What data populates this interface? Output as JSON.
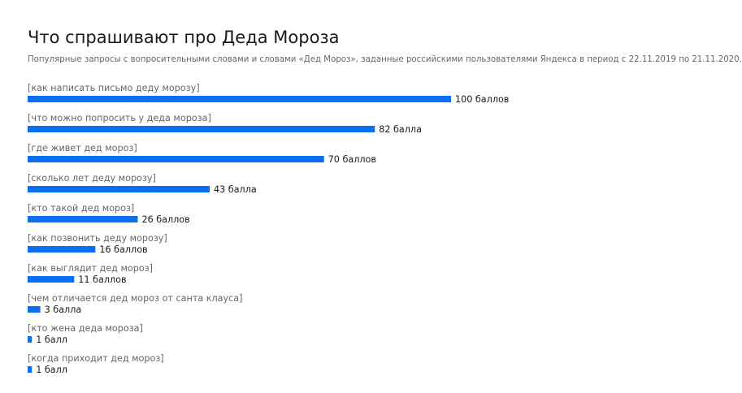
{
  "chart_data": {
    "type": "bar",
    "orientation": "horizontal",
    "title": "Что спрашивают про Деда Мороза",
    "subtitle": "Популярные запросы с вопросительными словами и словами «Дед Мороз», заданные российскими пользователями Яндекса в период с 22.11.2019 по 21.11.2020.",
    "categories": [
      "[как написать письмо деду морозу]",
      "[что можно попросить у деда мороза]",
      "[где живет дед мороз]",
      "[сколько лет деду морозу]",
      "[кто такой дед мороз]",
      "[как позвонить деду морозу]",
      "[как выглядит дед мороз]",
      "[чем отличается дед мороз от санта клауса]",
      "[кто жена деда мороза]",
      "[когда приходит дед мороз]"
    ],
    "values": [
      100,
      82,
      70,
      43,
      26,
      16,
      11,
      3,
      1,
      1
    ],
    "value_labels": [
      "100 баллов",
      "82 балла",
      "70 баллов",
      "43 балла",
      "26 баллов",
      "16 баллов",
      "11 баллов",
      "3 балла",
      "1 балл",
      "1 балл"
    ],
    "xlim": [
      0,
      100
    ],
    "grid": false,
    "legend": "none",
    "bar_color": "#0a6ef0"
  }
}
